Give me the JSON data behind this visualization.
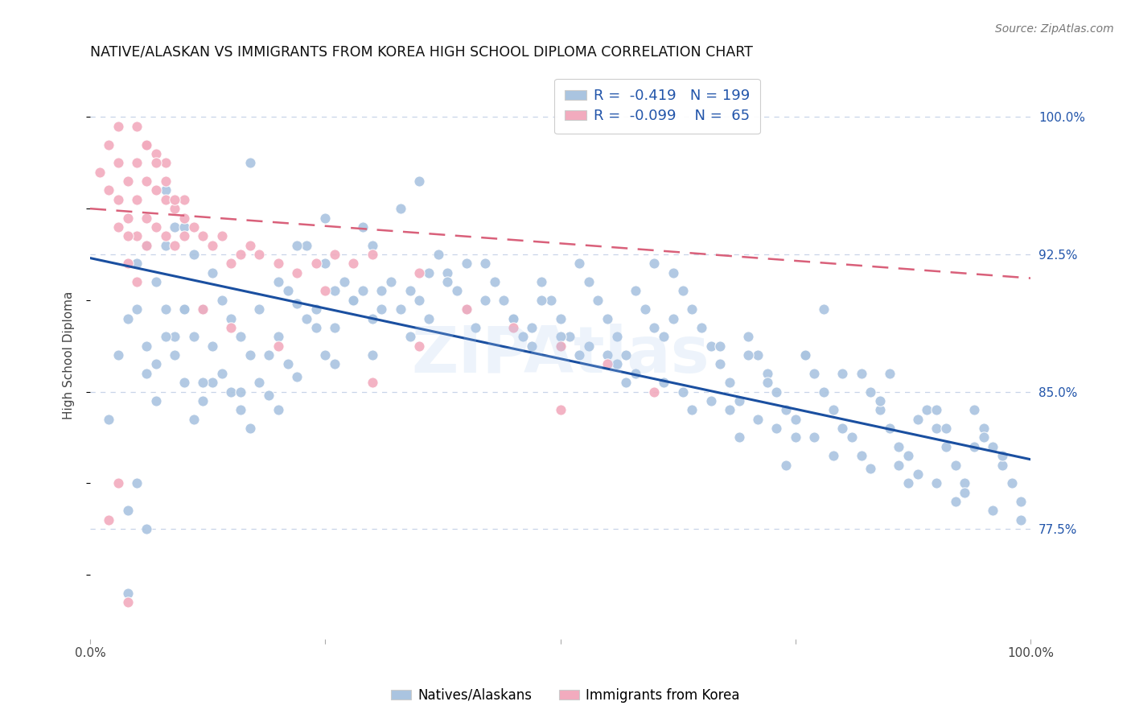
{
  "title": "NATIVE/ALASKAN VS IMMIGRANTS FROM KOREA HIGH SCHOOL DIPLOMA CORRELATION CHART",
  "source": "Source: ZipAtlas.com",
  "ylabel": "High School Diploma",
  "watermark": "ZIPAtlas",
  "legend_blue_r": "-0.419",
  "legend_blue_n": "199",
  "legend_pink_r": "-0.099",
  "legend_pink_n": "65",
  "legend_label_blue": "Natives/Alaskans",
  "legend_label_pink": "Immigrants from Korea",
  "xlim": [
    0.0,
    1.0
  ],
  "ylim": [
    0.715,
    1.025
  ],
  "yticks": [
    0.775,
    0.85,
    0.925,
    1.0
  ],
  "yticklabels": [
    "77.5%",
    "85.0%",
    "92.5%",
    "100.0%"
  ],
  "blue_color": "#aac4e0",
  "pink_color": "#f2abbe",
  "blue_line_color": "#1a4fa0",
  "pink_line_color": "#d9607a",
  "grid_color": "#c8d4e8",
  "background_color": "#ffffff",
  "blue_trend_x": [
    0.0,
    1.0
  ],
  "blue_trend_y": [
    0.923,
    0.813
  ],
  "pink_trend_x": [
    0.0,
    1.0
  ],
  "pink_trend_y": [
    0.95,
    0.912
  ],
  "blue_scatter_x": [
    0.02,
    0.03,
    0.04,
    0.05,
    0.05,
    0.06,
    0.06,
    0.07,
    0.07,
    0.08,
    0.08,
    0.08,
    0.09,
    0.09,
    0.1,
    0.1,
    0.1,
    0.11,
    0.11,
    0.12,
    0.12,
    0.13,
    0.13,
    0.14,
    0.14,
    0.15,
    0.15,
    0.16,
    0.16,
    0.17,
    0.17,
    0.18,
    0.18,
    0.19,
    0.2,
    0.2,
    0.21,
    0.21,
    0.22,
    0.22,
    0.23,
    0.23,
    0.24,
    0.25,
    0.25,
    0.26,
    0.26,
    0.27,
    0.28,
    0.29,
    0.3,
    0.3,
    0.31,
    0.32,
    0.33,
    0.34,
    0.35,
    0.36,
    0.37,
    0.38,
    0.39,
    0.4,
    0.41,
    0.42,
    0.43,
    0.44,
    0.45,
    0.46,
    0.47,
    0.48,
    0.49,
    0.5,
    0.51,
    0.52,
    0.53,
    0.54,
    0.55,
    0.56,
    0.57,
    0.58,
    0.59,
    0.6,
    0.61,
    0.62,
    0.63,
    0.64,
    0.65,
    0.66,
    0.67,
    0.68,
    0.69,
    0.7,
    0.71,
    0.72,
    0.73,
    0.74,
    0.75,
    0.76,
    0.77,
    0.78,
    0.79,
    0.8,
    0.81,
    0.82,
    0.83,
    0.84,
    0.85,
    0.86,
    0.87,
    0.88,
    0.89,
    0.9,
    0.91,
    0.92,
    0.93,
    0.94,
    0.95,
    0.96,
    0.97,
    0.98,
    0.99,
    0.6,
    0.35,
    0.5,
    0.38,
    0.1,
    0.13,
    0.17,
    0.08,
    0.06,
    0.07,
    0.09,
    0.11,
    0.12,
    0.16,
    0.19,
    0.22,
    0.28,
    0.33,
    0.4,
    0.48,
    0.55,
    0.62,
    0.7,
    0.78,
    0.85,
    0.9,
    0.95,
    0.67,
    0.72,
    0.76,
    0.8,
    0.84,
    0.88,
    0.91,
    0.94,
    0.97,
    0.53,
    0.58,
    0.63,
    0.68,
    0.73,
    0.77,
    0.82,
    0.86,
    0.9,
    0.93,
    0.96,
    0.99,
    0.45,
    0.5,
    0.56,
    0.61,
    0.66,
    0.71,
    0.75,
    0.79,
    0.83,
    0.87,
    0.92,
    0.25,
    0.3,
    0.36,
    0.42,
    0.47,
    0.52,
    0.57,
    0.64,
    0.69,
    0.74,
    0.04,
    0.04,
    0.05,
    0.06,
    0.2,
    0.24,
    0.26,
    0.29,
    0.31,
    0.34
  ],
  "blue_scatter_y": [
    0.835,
    0.87,
    0.89,
    0.92,
    0.895,
    0.875,
    0.93,
    0.865,
    0.91,
    0.895,
    0.93,
    0.96,
    0.88,
    0.94,
    0.855,
    0.895,
    0.94,
    0.88,
    0.925,
    0.845,
    0.895,
    0.875,
    0.915,
    0.86,
    0.9,
    0.85,
    0.89,
    0.84,
    0.88,
    0.83,
    0.87,
    0.855,
    0.895,
    0.848,
    0.84,
    0.88,
    0.865,
    0.905,
    0.858,
    0.898,
    0.89,
    0.93,
    0.885,
    0.92,
    0.87,
    0.905,
    0.865,
    0.91,
    0.9,
    0.94,
    0.89,
    0.87,
    0.905,
    0.91,
    0.95,
    0.905,
    0.9,
    0.89,
    0.925,
    0.915,
    0.905,
    0.895,
    0.885,
    0.92,
    0.91,
    0.9,
    0.89,
    0.88,
    0.875,
    0.91,
    0.9,
    0.89,
    0.88,
    0.92,
    0.91,
    0.9,
    0.89,
    0.88,
    0.87,
    0.905,
    0.895,
    0.885,
    0.88,
    0.915,
    0.905,
    0.895,
    0.885,
    0.875,
    0.865,
    0.855,
    0.845,
    0.88,
    0.87,
    0.86,
    0.85,
    0.84,
    0.835,
    0.87,
    0.86,
    0.85,
    0.84,
    0.83,
    0.825,
    0.86,
    0.85,
    0.84,
    0.83,
    0.82,
    0.815,
    0.805,
    0.84,
    0.83,
    0.82,
    0.81,
    0.8,
    0.84,
    0.83,
    0.82,
    0.81,
    0.8,
    0.79,
    0.92,
    0.965,
    0.875,
    0.91,
    0.895,
    0.855,
    0.975,
    0.88,
    0.86,
    0.845,
    0.87,
    0.835,
    0.855,
    0.85,
    0.87,
    0.93,
    0.9,
    0.895,
    0.92,
    0.9,
    0.87,
    0.89,
    0.87,
    0.895,
    0.86,
    0.84,
    0.825,
    0.875,
    0.855,
    0.87,
    0.86,
    0.845,
    0.835,
    0.83,
    0.82,
    0.815,
    0.875,
    0.86,
    0.85,
    0.84,
    0.83,
    0.825,
    0.815,
    0.81,
    0.8,
    0.795,
    0.785,
    0.78,
    0.89,
    0.88,
    0.865,
    0.855,
    0.845,
    0.835,
    0.825,
    0.815,
    0.808,
    0.8,
    0.79,
    0.945,
    0.93,
    0.915,
    0.9,
    0.885,
    0.87,
    0.855,
    0.84,
    0.825,
    0.81,
    0.74,
    0.785,
    0.8,
    0.775,
    0.91,
    0.895,
    0.885,
    0.905,
    0.895,
    0.88
  ],
  "pink_scatter_x": [
    0.01,
    0.02,
    0.02,
    0.03,
    0.03,
    0.03,
    0.04,
    0.04,
    0.05,
    0.05,
    0.05,
    0.06,
    0.06,
    0.06,
    0.07,
    0.07,
    0.07,
    0.08,
    0.08,
    0.08,
    0.09,
    0.09,
    0.1,
    0.1,
    0.11,
    0.12,
    0.13,
    0.14,
    0.15,
    0.16,
    0.17,
    0.18,
    0.2,
    0.22,
    0.24,
    0.26,
    0.28,
    0.3,
    0.35,
    0.4,
    0.45,
    0.5,
    0.55,
    0.6,
    0.03,
    0.04,
    0.05,
    0.06,
    0.07,
    0.08,
    0.09,
    0.1,
    0.04,
    0.05,
    0.06,
    0.02,
    0.03,
    0.04,
    0.12,
    0.15,
    0.2,
    0.25,
    0.3,
    0.35,
    0.5
  ],
  "pink_scatter_y": [
    0.97,
    0.96,
    0.985,
    0.955,
    0.975,
    0.995,
    0.945,
    0.965,
    0.935,
    0.955,
    0.975,
    0.945,
    0.965,
    0.985,
    0.94,
    0.96,
    0.98,
    0.935,
    0.955,
    0.975,
    0.93,
    0.95,
    0.935,
    0.955,
    0.94,
    0.935,
    0.93,
    0.935,
    0.92,
    0.925,
    0.93,
    0.925,
    0.92,
    0.915,
    0.92,
    0.925,
    0.92,
    0.925,
    0.915,
    0.895,
    0.885,
    0.875,
    0.865,
    0.85,
    0.94,
    0.935,
    0.995,
    0.985,
    0.975,
    0.965,
    0.955,
    0.945,
    0.92,
    0.91,
    0.93,
    0.78,
    0.8,
    0.735,
    0.895,
    0.885,
    0.875,
    0.905,
    0.855,
    0.875,
    0.84
  ]
}
